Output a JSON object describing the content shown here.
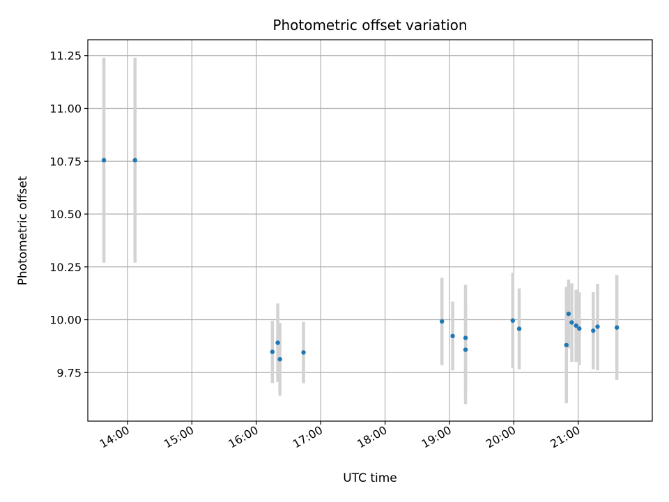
{
  "chart_data": {
    "type": "scatter",
    "title": "Photometric offset variation",
    "xlabel": "UTC time",
    "ylabel": "Photometric offset",
    "grid": true,
    "xlim": [
      "13:23",
      "22:09"
    ],
    "ylim": [
      9.52,
      11.325
    ],
    "x_ticks": [
      "14:00",
      "15:00",
      "16:00",
      "17:00",
      "18:00",
      "19:00",
      "20:00",
      "21:00"
    ],
    "y_ticks": [
      "9.75",
      "10.00",
      "10.25",
      "10.50",
      "10.75",
      "11.00",
      "11.25"
    ],
    "point_color": "#1f77b4",
    "errorbar_color": "#d3d3d3",
    "series": [
      {
        "points": [
          {
            "x": "13:38",
            "y": 10.755,
            "ylow": 10.27,
            "yhigh": 11.24
          },
          {
            "x": "14:07",
            "y": 10.755,
            "ylow": 10.27,
            "yhigh": 11.24
          },
          {
            "x": "16:15",
            "y": 9.848,
            "ylow": 9.7,
            "yhigh": 9.995
          },
          {
            "x": "16:20",
            "y": 9.891,
            "ylow": 9.705,
            "yhigh": 10.077
          },
          {
            "x": "16:22",
            "y": 9.813,
            "ylow": 9.64,
            "yhigh": 9.985
          },
          {
            "x": "16:44",
            "y": 9.845,
            "ylow": 9.7,
            "yhigh": 9.99
          },
          {
            "x": "18:53",
            "y": 9.992,
            "ylow": 9.785,
            "yhigh": 10.198
          },
          {
            "x": "19:03",
            "y": 9.923,
            "ylow": 9.76,
            "yhigh": 10.086
          },
          {
            "x": "19:15",
            "y": 9.914,
            "ylow": 9.665,
            "yhigh": 10.165
          },
          {
            "x": "19:15",
            "y": 9.858,
            "ylow": 9.6,
            "yhigh": 10.07
          },
          {
            "x": "19:59",
            "y": 9.996,
            "ylow": 9.77,
            "yhigh": 10.222
          },
          {
            "x": "20:05",
            "y": 9.957,
            "ylow": 9.765,
            "yhigh": 10.148
          },
          {
            "x": "20:49",
            "y": 9.88,
            "ylow": 9.605,
            "yhigh": 10.155
          },
          {
            "x": "20:51",
            "y": 10.028,
            "ylow": 9.865,
            "yhigh": 10.19
          },
          {
            "x": "20:54",
            "y": 9.987,
            "ylow": 9.8,
            "yhigh": 10.172
          },
          {
            "x": "20:58",
            "y": 9.972,
            "ylow": 9.8,
            "yhigh": 10.142
          },
          {
            "x": "21:01",
            "y": 9.958,
            "ylow": 9.785,
            "yhigh": 10.13
          },
          {
            "x": "21:14",
            "y": 9.948,
            "ylow": 9.765,
            "yhigh": 10.13
          },
          {
            "x": "21:18",
            "y": 9.967,
            "ylow": 9.76,
            "yhigh": 10.17
          },
          {
            "x": "21:36",
            "y": 9.963,
            "ylow": 9.715,
            "yhigh": 10.212
          }
        ]
      }
    ]
  }
}
